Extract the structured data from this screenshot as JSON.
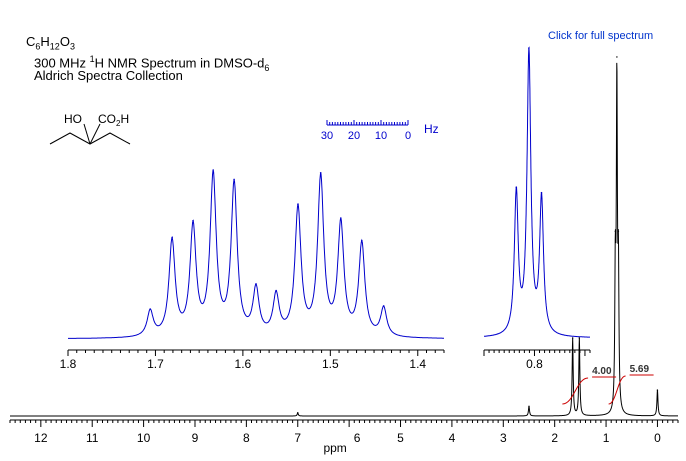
{
  "header": {
    "formula": {
      "c": "C",
      "c_n": "6",
      "h": "H",
      "h_n": "12",
      "o": "O",
      "o_n": "3"
    },
    "line2": {
      "pre": "300 MHz ",
      "sup": "1",
      "mid": "H NMR Spectrum in DMSO-d",
      "sub": "6"
    },
    "line3": "Aldrich Spectra Collection"
  },
  "link_text": "Click for full spectrum",
  "structure": {
    "left_label": "HO",
    "right_label_a": "CO",
    "right_label_sub": "2",
    "right_label_b": "H"
  },
  "colors": {
    "main": "#000000",
    "expansion": "#0000cc",
    "integral": "#cc0000",
    "hz_scale": "#0000cc"
  },
  "chart_data": [
    {
      "type": "line",
      "name": "main_spectrum",
      "xlabel": "ppm",
      "xlim": [
        12.6,
        -0.4
      ],
      "x_reversed": true,
      "xticks": [
        12,
        11,
        10,
        9,
        8,
        7,
        6,
        5,
        4,
        3,
        2,
        1,
        0
      ],
      "xtick_labels": [
        "12",
        "11",
        "10",
        "9",
        "8",
        "7",
        "6",
        "5",
        "4",
        "3",
        "2",
        "1",
        "0"
      ],
      "grid": false,
      "peaks": [
        {
          "ppm": 7.0,
          "intensity": 0.01
        },
        {
          "ppm": 2.5,
          "intensity": 0.03
        },
        {
          "ppm": 1.65,
          "intensity": 0.24
        },
        {
          "ppm": 1.52,
          "intensity": 0.24
        },
        {
          "ppm": 0.82,
          "intensity": 0.42
        },
        {
          "ppm": 0.79,
          "intensity": 1.0
        },
        {
          "ppm": 0.76,
          "intensity": 0.42
        },
        {
          "ppm": 0.0,
          "intensity": 0.08
        }
      ],
      "integrals": [
        {
          "label": "4.00",
          "from_ppm": 1.85,
          "to_ppm": 1.35
        },
        {
          "label": "5.69",
          "from_ppm": 0.95,
          "to_ppm": 0.62
        }
      ]
    },
    {
      "type": "line",
      "name": "expansion_methylene",
      "xlim": [
        1.8,
        1.37
      ],
      "x_reversed": true,
      "xtick_labels": [
        "1.8",
        "1.7",
        "1.6",
        "1.5",
        "1.4"
      ],
      "xticks": [
        1.8,
        1.7,
        1.6,
        1.5,
        1.4
      ],
      "grid": false,
      "peaks": [
        {
          "ppm": 1.706,
          "intensity": 0.16
        },
        {
          "ppm": 1.681,
          "intensity": 0.6
        },
        {
          "ppm": 1.657,
          "intensity": 0.68
        },
        {
          "ppm": 1.634,
          "intensity": 1.0
        },
        {
          "ppm": 1.61,
          "intensity": 0.95
        },
        {
          "ppm": 1.585,
          "intensity": 0.29
        },
        {
          "ppm": 1.562,
          "intensity": 0.25
        },
        {
          "ppm": 1.537,
          "intensity": 0.8
        },
        {
          "ppm": 1.511,
          "intensity": 0.99
        },
        {
          "ppm": 1.488,
          "intensity": 0.7
        },
        {
          "ppm": 1.464,
          "intensity": 0.58
        },
        {
          "ppm": 1.439,
          "intensity": 0.18
        }
      ]
    },
    {
      "type": "line",
      "name": "expansion_methyl",
      "xlim": [
        0.9,
        0.69
      ],
      "x_reversed": true,
      "xtick_labels": [
        "0.8"
      ],
      "xticks": [
        0.8
      ],
      "grid": false,
      "peaks": [
        {
          "ppm": 0.836,
          "intensity": 0.5
        },
        {
          "ppm": 0.811,
          "intensity": 1.0
        },
        {
          "ppm": 0.786,
          "intensity": 0.48
        }
      ]
    },
    {
      "type": "scale",
      "name": "hz_scale",
      "unit": "Hz",
      "tick_labels": [
        "30",
        "20",
        "10",
        "0"
      ],
      "range": [
        30,
        0
      ]
    }
  ]
}
